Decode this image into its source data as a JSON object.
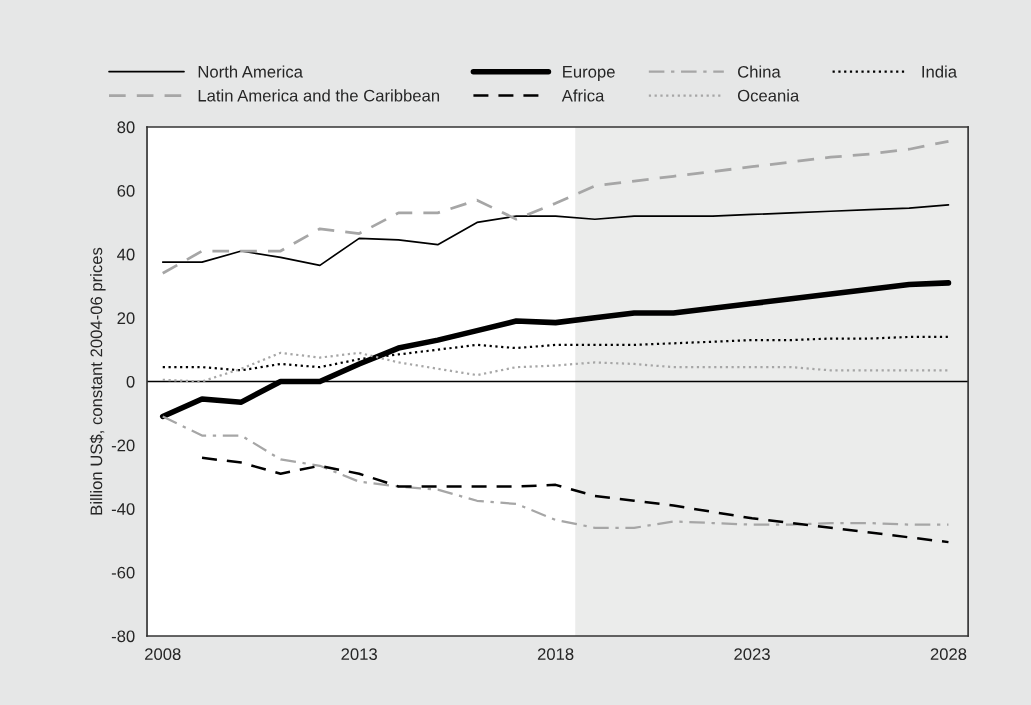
{
  "chart_data": {
    "type": "line",
    "ylabel": "Billion US$, constant 2004-06 prices",
    "x": [
      2008,
      2009,
      2010,
      2011,
      2012,
      2013,
      2014,
      2015,
      2016,
      2017,
      2018,
      2019,
      2020,
      2021,
      2022,
      2023,
      2024,
      2025,
      2026,
      2027,
      2028
    ],
    "series": [
      {
        "name": "North America",
        "color": "#000000",
        "line_style": "solid",
        "values": [
          37.5,
          37.5,
          41,
          39,
          36.5,
          45,
          44.5,
          43,
          50,
          52,
          52,
          51,
          52,
          52,
          52,
          52.5,
          53,
          53.5,
          54,
          54.5,
          55.5
        ]
      },
      {
        "name": "Europe",
        "color": "#000000",
        "line_style": "solid",
        "values": [
          -11,
          -5.5,
          -6.5,
          0,
          0,
          5.5,
          10.5,
          13,
          16,
          19,
          18.5,
          20,
          21.5,
          21.5,
          23,
          24.5,
          26,
          27.5,
          29,
          30.5,
          31
        ]
      },
      {
        "name": "China",
        "color": "#a6a6a6",
        "line_style": "dashdot",
        "values": [
          -11,
          -17,
          -17,
          -24.5,
          -26.5,
          -31.5,
          -33,
          -34,
          -37.5,
          -38.5,
          -43.5,
          -46,
          -46,
          -44,
          -44.5,
          -45,
          -45,
          -44.5,
          -44.5,
          -45,
          -45
        ]
      },
      {
        "name": "India",
        "color": "#000000",
        "line_style": "dotted",
        "values": [
          4.5,
          4.5,
          3.5,
          5.5,
          4.5,
          7,
          8.5,
          10,
          11.5,
          10.5,
          11.5,
          11.5,
          11.5,
          12,
          12.5,
          13,
          13,
          13.5,
          13.5,
          14,
          14
        ]
      },
      {
        "name": "Latin America and the Caribbean",
        "color": "#a6a6a6",
        "line_style": "dashed",
        "values": [
          34,
          41,
          41,
          41,
          48,
          46.5,
          53,
          53,
          57,
          51,
          56,
          61.5,
          63,
          64.5,
          66,
          67.5,
          69,
          70.5,
          71.5,
          73,
          75.5
        ]
      },
      {
        "name": "Africa",
        "color": "#000000",
        "line_style": "dashed",
        "values": [
          null,
          -24,
          -25.5,
          -29,
          -26.5,
          -29,
          -33,
          -33,
          -33,
          -33,
          -32.5,
          -36,
          -37.5,
          -39,
          -41,
          -43,
          -44.5,
          -46,
          -47.5,
          -49,
          -50.5
        ]
      },
      {
        "name": "Oceania",
        "color": "#a6a6a6",
        "line_style": "dotted",
        "values": [
          0.5,
          0,
          4,
          9,
          7.5,
          9,
          6,
          4,
          2,
          4.5,
          5,
          6,
          5.5,
          4.5,
          4.5,
          4.5,
          4.5,
          3.5,
          3.5,
          3.5,
          3.5
        ]
      }
    ],
    "xlim": [
      2007.6,
      2028.5
    ],
    "xticks": [
      2008,
      2013,
      2018,
      2023,
      2028
    ],
    "ylim": [
      -80,
      80
    ],
    "yticks": [
      -80,
      -60,
      -40,
      -20,
      0,
      20,
      40,
      60,
      80
    ],
    "ref_lines": [
      {
        "axis": "y",
        "value": 0,
        "color": "#000000"
      }
    ],
    "bands": [
      {
        "axis": "x",
        "from": 2018.5,
        "to": 2028.5,
        "color": "#ebeceb"
      }
    ],
    "grid": false,
    "legend": "top"
  }
}
